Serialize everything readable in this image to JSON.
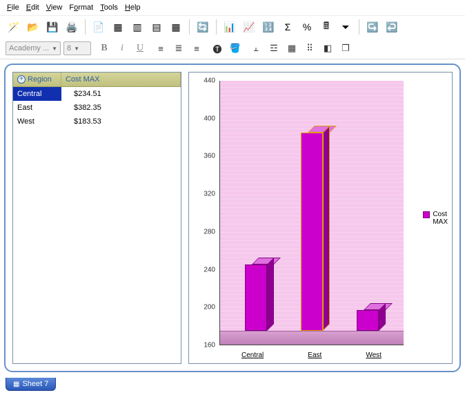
{
  "menu": {
    "items": [
      {
        "key": "F",
        "label": "File"
      },
      {
        "key": "E",
        "label": "Edit"
      },
      {
        "key": "V",
        "label": "View"
      },
      {
        "key": "o",
        "label": "Format",
        "ukey": "o",
        "pre": "F",
        "post": "rmat"
      },
      {
        "key": "T",
        "label": "Tools"
      },
      {
        "key": "H",
        "label": "Help"
      }
    ]
  },
  "format_bar": {
    "font_name": "Academy ...",
    "font_size": "8"
  },
  "table": {
    "columns": {
      "region": "Region",
      "cost": "Cost MAX"
    },
    "rows": [
      {
        "region": "Central",
        "cost": "$234.51",
        "selected": true
      },
      {
        "region": "East",
        "cost": "$382.35",
        "selected": false
      },
      {
        "region": "West",
        "cost": "$183.53",
        "selected": false
      }
    ]
  },
  "chart": {
    "type": "bar",
    "categories": [
      "Central",
      "East",
      "West"
    ],
    "values": [
      234.51,
      382.35,
      183.53
    ],
    "bar_color": "#cc00cc",
    "bar_side_color": "#900090",
    "bar_top_color": "#e070e0",
    "bar_border": "#800080",
    "highlight_index": 1,
    "highlight_border": "#e0a000",
    "plot_bg": "#f6c8ec",
    "floor_color": "#c080b8",
    "ylim": [
      160,
      440
    ],
    "ytick_step": 40,
    "legend_label": "Cost\nMAX",
    "legend_lines": [
      "Cost",
      "MAX"
    ]
  },
  "sheet": {
    "label": "Sheet 7"
  }
}
